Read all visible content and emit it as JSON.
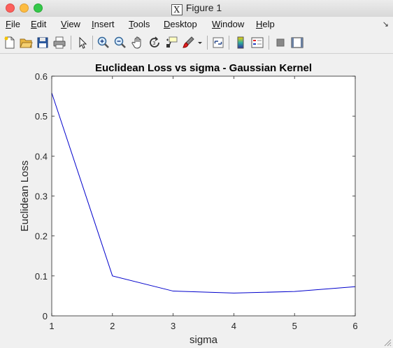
{
  "window": {
    "title": "Figure 1"
  },
  "menu": {
    "items": [
      {
        "label_first": "F",
        "label_rest": "ile"
      },
      {
        "label_first": "E",
        "label_rest": "dit"
      },
      {
        "label_first": "V",
        "label_rest": "iew"
      },
      {
        "label_first": "I",
        "label_rest": "nsert"
      },
      {
        "label_first": "T",
        "label_rest": "ools"
      },
      {
        "label_first": "D",
        "label_rest": "esktop"
      },
      {
        "label_first": "W",
        "label_rest": "indow"
      },
      {
        "label_first": "H",
        "label_rest": "elp"
      }
    ]
  },
  "toolbar": {
    "icons": [
      "new-figure-icon",
      "open-file-icon",
      "save-icon",
      "print-icon",
      "pointer-icon",
      "zoom-in-icon",
      "zoom-out-icon",
      "pan-icon",
      "rotate-3d-icon",
      "data-cursor-icon",
      "brush-icon",
      "link-plot-icon",
      "colorbar-icon",
      "legend-icon",
      "hide-plot-tools-icon",
      "show-plot-tools-icon"
    ]
  },
  "colors": {
    "line": "#0000cc",
    "axes_bg": "#ffffff",
    "figure_bg": "#f0f0f0"
  },
  "chart_data": {
    "type": "line",
    "title": "Euclidean Loss vs sigma - Gaussian Kernel",
    "xlabel": "sigma",
    "ylabel": "Euclidean Loss",
    "xlim": [
      1,
      6
    ],
    "ylim": [
      0,
      0.6
    ],
    "xticks": [
      "1",
      "2",
      "3",
      "4",
      "5",
      "6"
    ],
    "yticks": [
      "0",
      "0.1",
      "0.2",
      "0.3",
      "0.4",
      "0.5",
      "0.6"
    ],
    "grid": false,
    "x": [
      1,
      2,
      3,
      4,
      5,
      6
    ],
    "series": [
      {
        "values": [
          0.558,
          0.1,
          0.062,
          0.057,
          0.061,
          0.073
        ]
      }
    ]
  }
}
